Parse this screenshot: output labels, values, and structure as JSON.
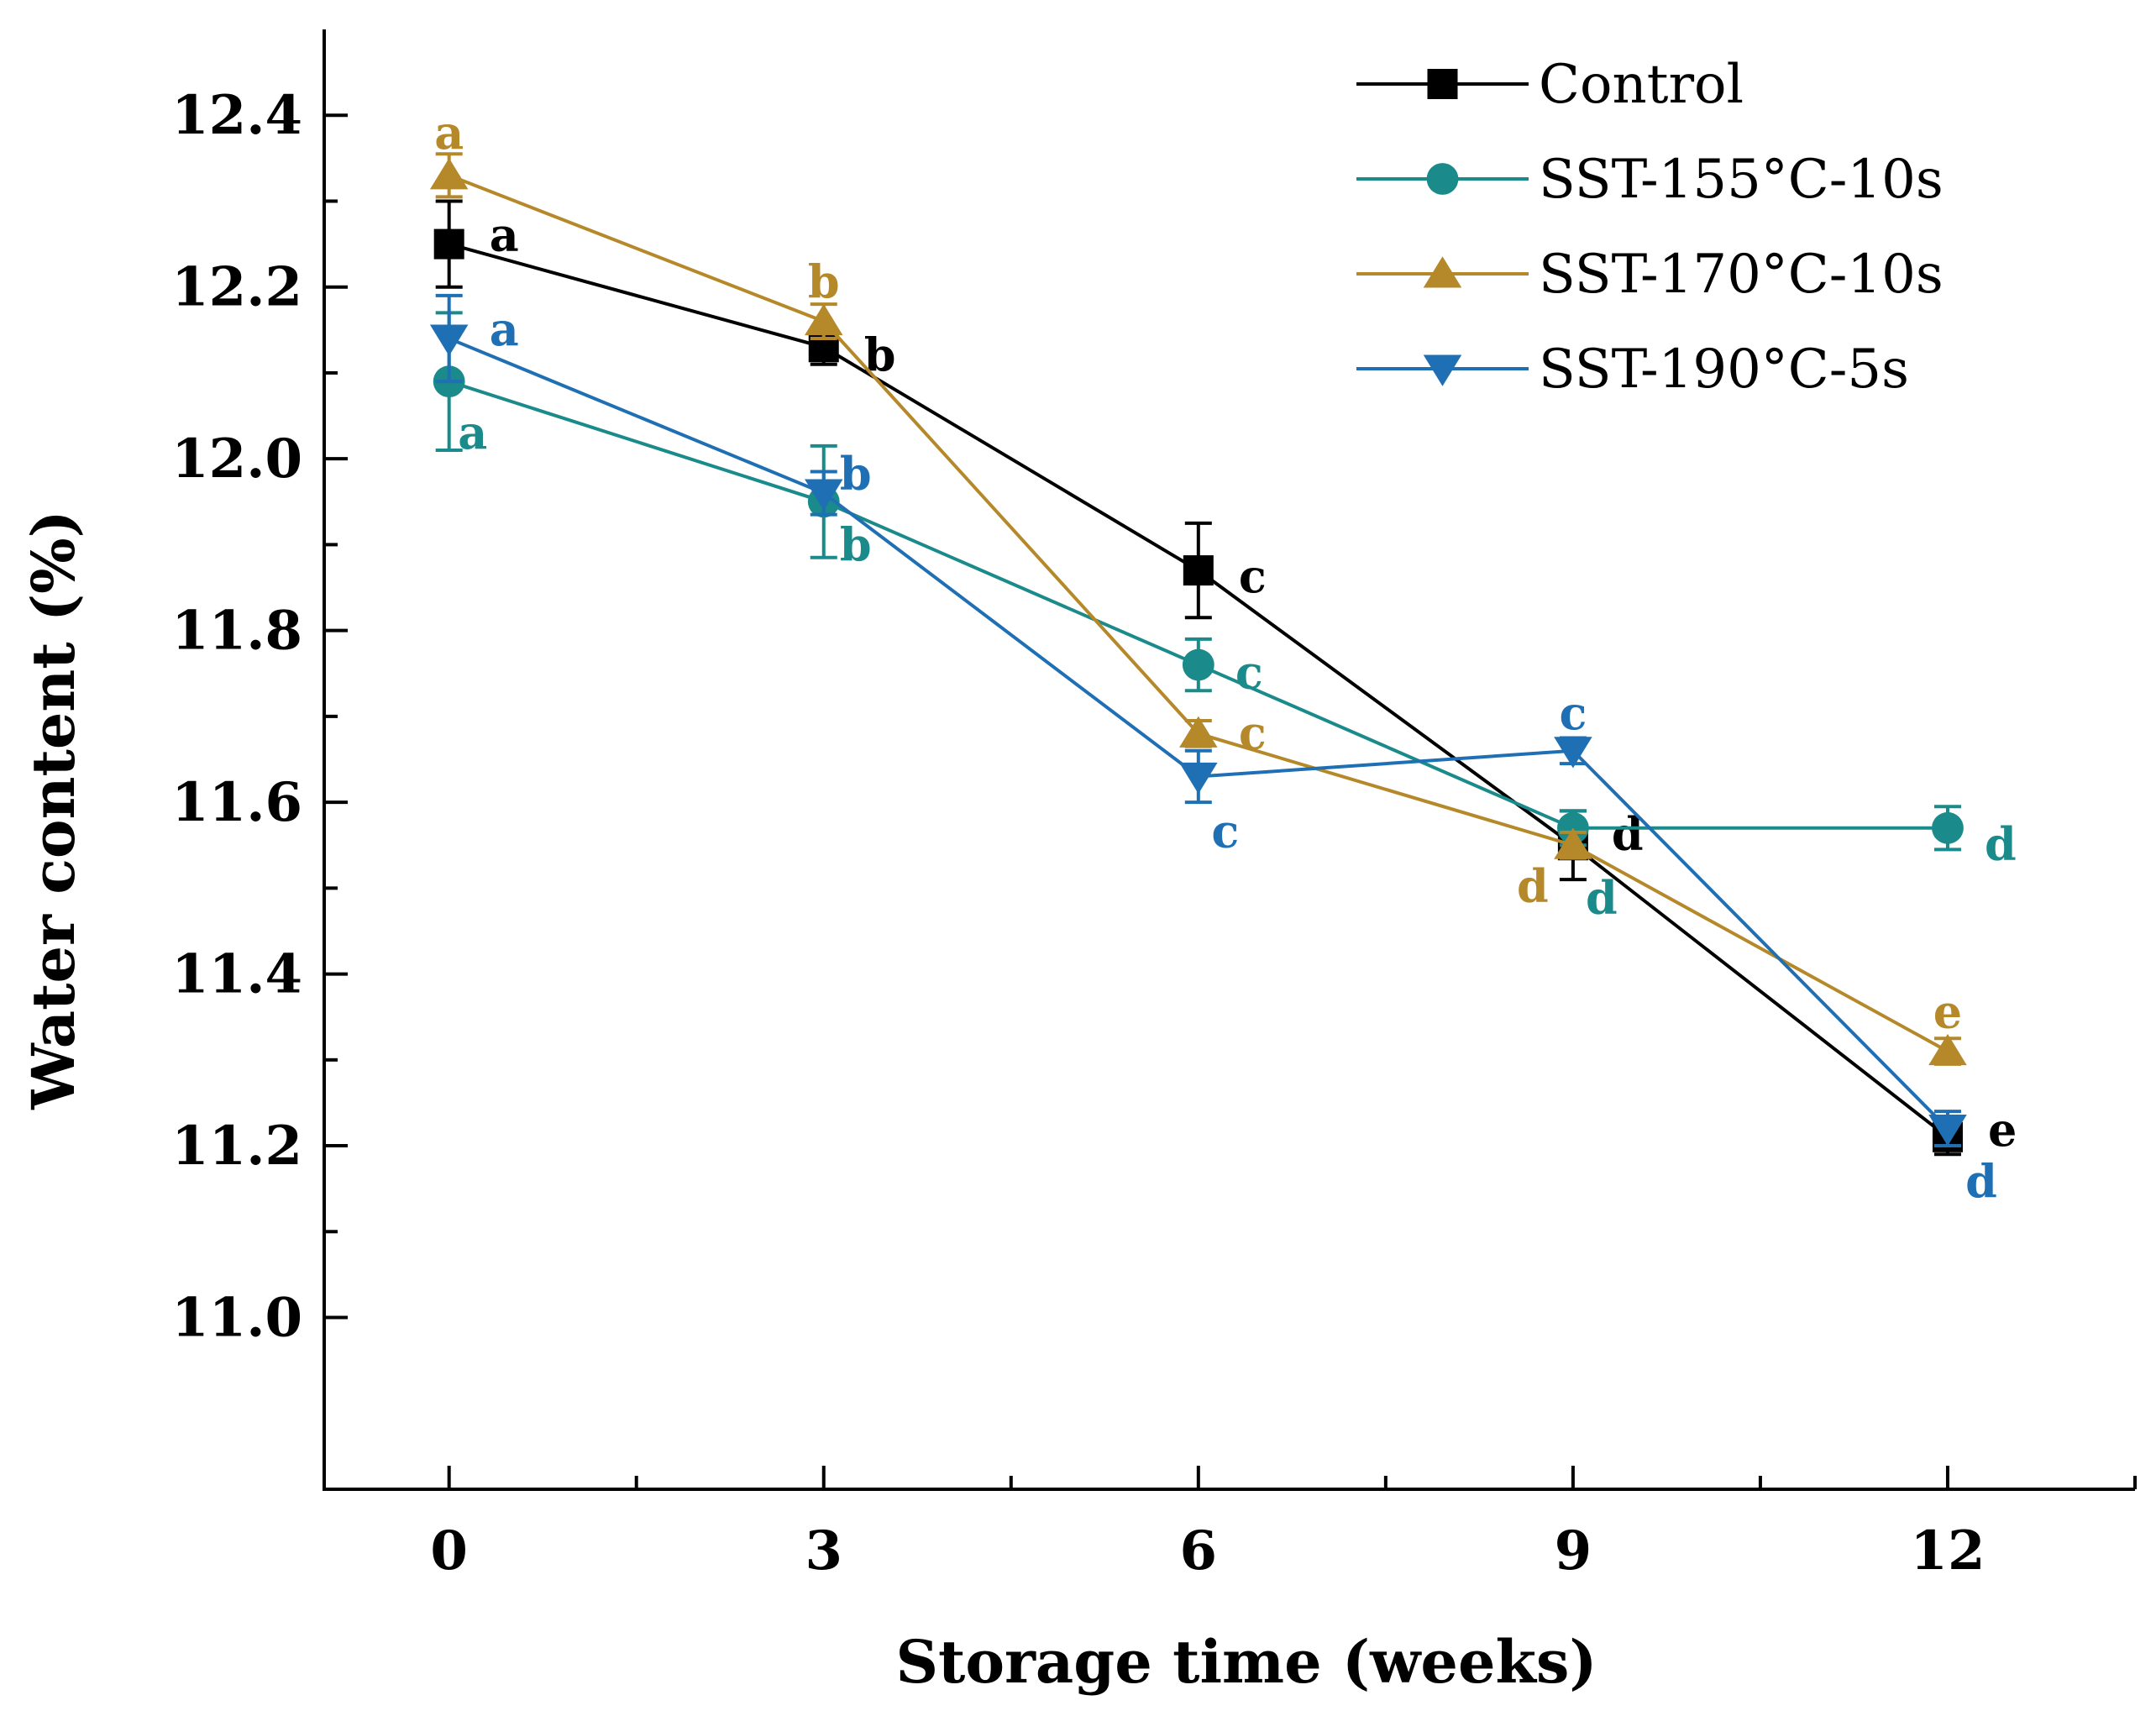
{
  "chart_data": {
    "type": "line",
    "title": "",
    "xlabel": "Storage time (weeks)",
    "ylabel": "Water content (%)",
    "x": [
      0,
      3,
      6,
      9,
      12
    ],
    "xlim": [
      -1,
      13.5
    ],
    "ylim": [
      10.8,
      12.5
    ],
    "xticks": [
      0,
      3,
      6,
      9,
      12
    ],
    "yticks": [
      11.0,
      11.2,
      11.4,
      11.6,
      11.8,
      12.0,
      12.2,
      12.4
    ],
    "ytick_labels": [
      "11.0",
      "11.2",
      "11.4",
      "11.6",
      "11.8",
      "12.0",
      "12.2",
      "12.4"
    ],
    "xtick_labels": [
      "0",
      "3",
      "6",
      "9",
      "12"
    ],
    "grid": false,
    "legend_position": "top-right",
    "series": [
      {
        "name": "Control",
        "color": "#000000",
        "marker": "square",
        "values": [
          12.25,
          12.13,
          11.87,
          11.55,
          11.21
        ],
        "errors": [
          0.05,
          0.02,
          0.055,
          0.04,
          0.02
        ],
        "letters": [
          "a",
          "b",
          "c",
          "d",
          "e"
        ]
      },
      {
        "name": "SST-155°C-10s",
        "color": "#1a8a8a",
        "marker": "circle",
        "values": [
          12.09,
          11.95,
          11.76,
          11.57,
          11.57
        ],
        "errors": [
          0.08,
          0.065,
          0.03,
          0.02,
          0.025
        ],
        "letters": [
          "a",
          "b",
          "c",
          "d",
          "d"
        ]
      },
      {
        "name": "SST-170°C-10s",
        "color": "#b5892a",
        "marker": "triangle-up",
        "values": [
          12.33,
          12.16,
          11.68,
          11.55,
          11.31
        ],
        "errors": [
          0.025,
          0.02,
          0.015,
          0.015,
          0.015
        ],
        "letters": [
          "a",
          "b",
          "c",
          "d",
          "e"
        ]
      },
      {
        "name": "SST-190°C-5s",
        "color": "#1f6fb5",
        "marker": "triangle-down",
        "values": [
          12.14,
          11.96,
          11.63,
          11.66,
          11.22
        ],
        "errors": [
          0.05,
          0.025,
          0.03,
          0.015,
          0.02
        ],
        "letters": [
          "a",
          "b",
          "c",
          "c",
          "d"
        ]
      }
    ]
  }
}
